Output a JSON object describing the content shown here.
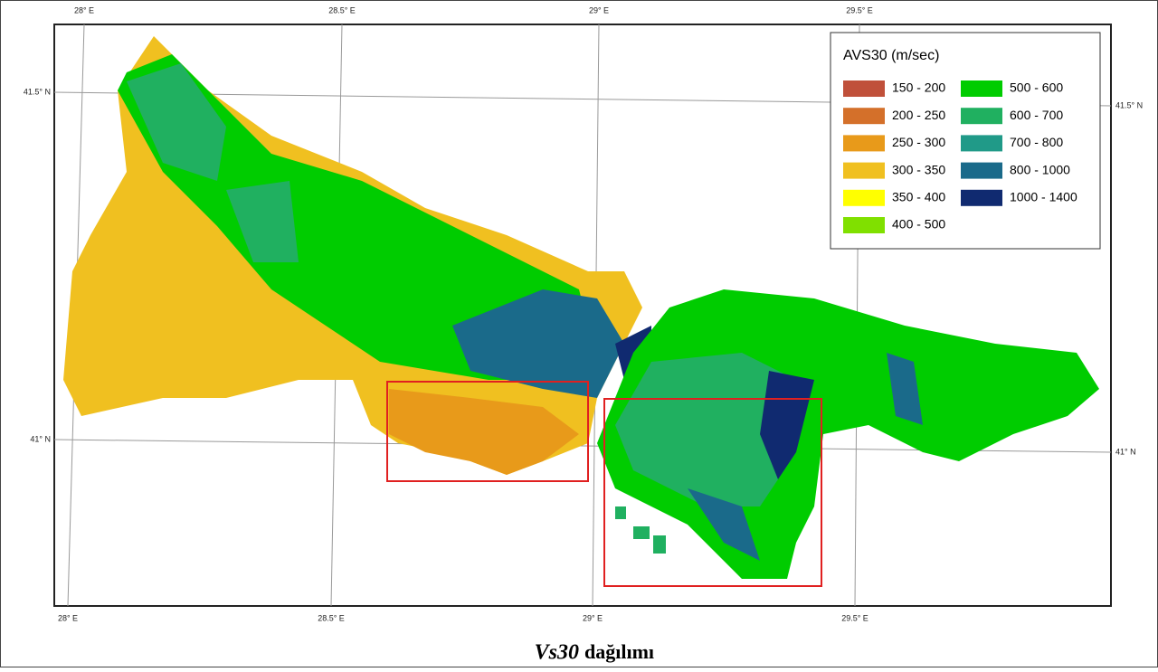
{
  "legend": {
    "title": "AVS30 (m/sec)",
    "items": [
      {
        "label": "150 - 200",
        "color": "#c0503a"
      },
      {
        "label": "200 - 250",
        "color": "#d4702a"
      },
      {
        "label": "250 - 300",
        "color": "#e89a1a"
      },
      {
        "label": "300 - 350",
        "color": "#f0c020"
      },
      {
        "label": "350 - 400",
        "color": "#ffff00"
      },
      {
        "label": "400 - 500",
        "color": "#80e000"
      },
      {
        "label": "500 - 600",
        "color": "#00cc00"
      },
      {
        "label": "600 - 700",
        "color": "#20b060"
      },
      {
        "label": "700 - 800",
        "color": "#209a88"
      },
      {
        "label": "800 - 1000",
        "color": "#1a6a8a"
      },
      {
        "label": "1000 - 1400",
        "color": "#102a70"
      }
    ]
  },
  "graticule": {
    "top": [
      "28° E",
      "28.5° E",
      "29° E",
      "29.5° E"
    ],
    "bottom": [
      "28° E",
      "28.5° E",
      "29° E",
      "29.5° E"
    ],
    "left": [
      "41.5° N",
      "41° N"
    ],
    "right": [
      "41.5° N",
      "41° N"
    ]
  },
  "caption": {
    "italic": "Vs30",
    "rest": "dağılımı"
  }
}
